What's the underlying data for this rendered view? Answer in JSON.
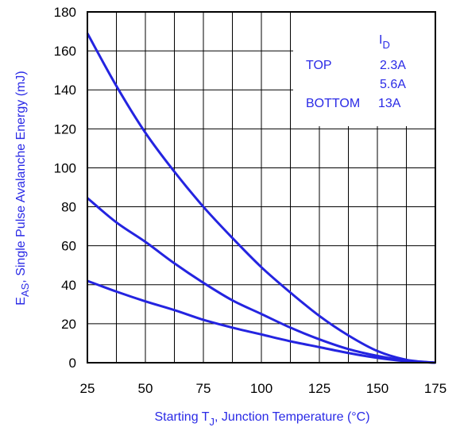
{
  "chart_data": {
    "type": "line",
    "xlabel": {
      "prefix": "Starting T",
      "subscript": "J",
      "suffix": ", Junction Temperature (°C)"
    },
    "ylabel": {
      "main": "E",
      "subscript": "AS",
      "suffix": ", Single Pulse Avalanche Energy (mJ)"
    },
    "xlim": [
      25,
      175
    ],
    "ylim": [
      0,
      180
    ],
    "xticks": [
      25,
      50,
      75,
      100,
      125,
      150,
      175
    ],
    "yticks": [
      0,
      20,
      40,
      60,
      80,
      100,
      120,
      140,
      160,
      180
    ],
    "grid": true,
    "legend": {
      "placement": "top-right",
      "header_main": "I",
      "header_sub": "D",
      "rows": [
        {
          "label": "TOP",
          "value": "2.3A"
        },
        {
          "label": "",
          "value": "5.6A"
        },
        {
          "label": "BOTTOM",
          "value": "13A"
        }
      ]
    },
    "x": [
      25,
      37.5,
      50,
      62.5,
      75,
      87.5,
      100,
      112.5,
      125,
      137.5,
      150,
      162.5,
      175
    ],
    "series": [
      {
        "values": [
          169,
          142,
          118,
          98,
          80,
          64,
          49,
          36,
          24,
          14,
          6,
          1.5,
          0
        ]
      },
      {
        "values": [
          84.5,
          72,
          62,
          51,
          41,
          32,
          25,
          18,
          12,
          7,
          3.5,
          1,
          0
        ]
      },
      {
        "values": [
          42,
          36.5,
          31.5,
          27,
          22,
          18,
          14.5,
          11,
          8,
          5,
          2.5,
          0.8,
          0
        ]
      }
    ],
    "colors": {
      "line": "#2424e0",
      "text": "#2a2ae6",
      "axis": "#000000"
    }
  }
}
